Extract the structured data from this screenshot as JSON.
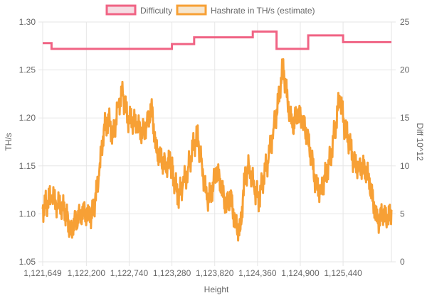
{
  "chart_data": {
    "type": "line",
    "title": "",
    "xlabel": "Height",
    "ylabel_left": "TH/s",
    "ylabel_right": "Diff 10^12",
    "xlim": [
      1121649,
      1126050
    ],
    "x_ticks": [
      1121649,
      1122200,
      1122740,
      1123280,
      1123820,
      1124360,
      1124900,
      1125440
    ],
    "x_tick_labels": [
      "1,121,649",
      "1,122,200",
      "1,122,740",
      "1,123,280",
      "1,123,820",
      "1,124,360",
      "1,124,900",
      "1,125,440"
    ],
    "ylim_left": [
      1.05,
      1.3
    ],
    "y_ticks_left": [
      "1.05",
      "1.10",
      "1.15",
      "1.20",
      "1.25",
      "1.30"
    ],
    "ylim_right": [
      0,
      25
    ],
    "y_ticks_right": [
      "0",
      "5",
      "10",
      "15",
      "20",
      "25"
    ],
    "grid": true,
    "legend_position": "top",
    "series": [
      {
        "name": "Difficulty",
        "axis": "right",
        "step": true,
        "color": "#f06384",
        "fill": "#f5dde3",
        "x": [
          1121649,
          1121760,
          1122480,
          1123280,
          1123560,
          1124300,
          1124600,
          1125000,
          1125440,
          1126050
        ],
        "values": [
          22.8,
          22.2,
          22.2,
          22.7,
          23.4,
          24.0,
          22.2,
          23.6,
          22.9,
          22.9
        ]
      },
      {
        "name": "Hashrate in TH/s (estimate)",
        "axis": "left",
        "step": false,
        "color": "#f7a035",
        "fill": "#f6e6cf",
        "x": [
          1121649,
          1121700,
          1121760,
          1121830,
          1121900,
          1121950,
          1122000,
          1122060,
          1122120,
          1122180,
          1122250,
          1122300,
          1122360,
          1122420,
          1122480,
          1122540,
          1122600,
          1122660,
          1122720,
          1122780,
          1122840,
          1122900,
          1122960,
          1123020,
          1123080,
          1123140,
          1123200,
          1123260,
          1123300,
          1123360,
          1123420,
          1123480,
          1123540,
          1123600,
          1123660,
          1123720,
          1123780,
          1123840,
          1123900,
          1123960,
          1124020,
          1124080,
          1124140,
          1124200,
          1124260,
          1124320,
          1124380,
          1124440,
          1124500,
          1124560,
          1124620,
          1124680,
          1124740,
          1124800,
          1124860,
          1124920,
          1124980,
          1125040,
          1125100,
          1125160,
          1125220,
          1125280,
          1125340,
          1125400,
          1125460,
          1125520,
          1125580,
          1125640,
          1125700,
          1125760,
          1125820,
          1125880,
          1125940,
          1126000,
          1126050
        ],
        "values": [
          1.105,
          1.112,
          1.118,
          1.11,
          1.108,
          1.098,
          1.082,
          1.092,
          1.1,
          1.102,
          1.096,
          1.108,
          1.14,
          1.188,
          1.198,
          1.18,
          1.215,
          1.225,
          1.2,
          1.198,
          1.192,
          1.185,
          1.19,
          1.212,
          1.168,
          1.158,
          1.15,
          1.155,
          1.138,
          1.118,
          1.13,
          1.145,
          1.168,
          1.182,
          1.15,
          1.115,
          1.122,
          1.146,
          1.13,
          1.108,
          1.118,
          1.09,
          1.082,
          1.138,
          1.15,
          1.125,
          1.115,
          1.14,
          1.158,
          1.188,
          1.215,
          1.255,
          1.218,
          1.19,
          1.205,
          1.198,
          1.184,
          1.16,
          1.128,
          1.125,
          1.14,
          1.158,
          1.19,
          1.222,
          1.19,
          1.175,
          1.152,
          1.15,
          1.148,
          1.14,
          1.112,
          1.09,
          1.102,
          1.092,
          1.104
        ]
      }
    ]
  }
}
